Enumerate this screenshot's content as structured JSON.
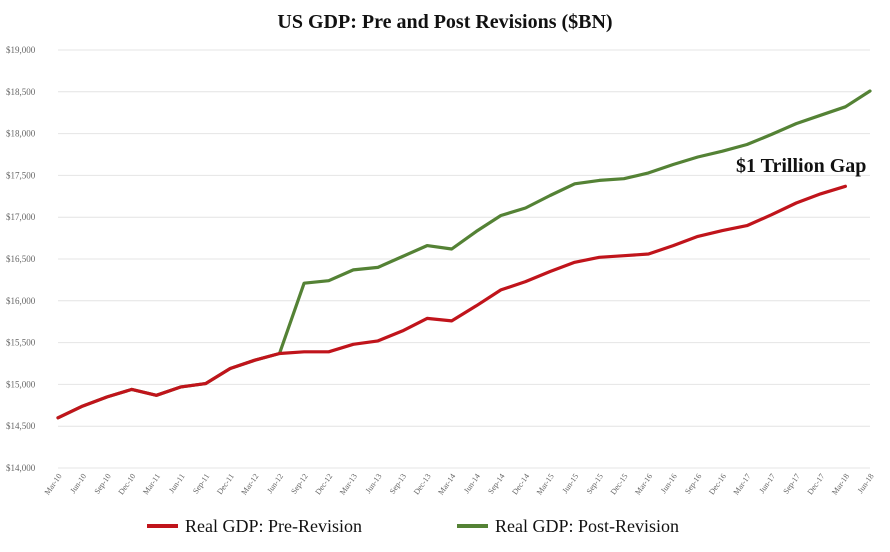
{
  "chart_data": {
    "type": "line",
    "title": "US GDP: Pre and Post Revisions ($BN)",
    "xlabel": "",
    "ylabel": "",
    "ylim": [
      14000,
      19000
    ],
    "y_ticks": [
      "$14,000",
      "$14,500",
      "$15,000",
      "$15,500",
      "$16,000",
      "$16,500",
      "$17,000",
      "$17,500",
      "$18,000",
      "$18,500",
      "$19,000"
    ],
    "x": [
      "Mar-10",
      "Jun-10",
      "Sep-10",
      "Dec-10",
      "Mar-11",
      "Jun-11",
      "Sep-11",
      "Dec-11",
      "Mar-12",
      "Jun-12",
      "Sep-12",
      "Dec-12",
      "Mar-13",
      "Jun-13",
      "Sep-13",
      "Dec-13",
      "Mar-14",
      "Jun-14",
      "Sep-14",
      "Dec-14",
      "Mar-15",
      "Jun-15",
      "Sep-15",
      "Dec-15",
      "Mar-16",
      "Jun-16",
      "Sep-16",
      "Dec-16",
      "Mar-17",
      "Jun-17",
      "Sep-17",
      "Dec-17",
      "Mar-18",
      "Jun-18"
    ],
    "grid": true,
    "legend": "bottom",
    "series": [
      {
        "name": "Real GDP: Pre-Revision",
        "color": "#c0141b",
        "values": [
          14600,
          14740,
          14850,
          14940,
          14870,
          14970,
          15010,
          15190,
          15290,
          15370,
          15390,
          15390,
          15480,
          15520,
          15640,
          15790,
          15760,
          15940,
          16130,
          16230,
          16350,
          16460,
          16520,
          16540,
          16560,
          16660,
          16770,
          16840,
          16900,
          17030,
          17170,
          17280,
          17370,
          null
        ]
      },
      {
        "name": "Real GDP: Post-Revision",
        "color": "#548235",
        "values": [
          14600,
          14740,
          14850,
          14940,
          14870,
          14970,
          15010,
          15190,
          15290,
          15370,
          16210,
          16240,
          16370,
          16400,
          16530,
          16660,
          16620,
          16830,
          17020,
          17110,
          17260,
          17400,
          17440,
          17460,
          17530,
          17630,
          17720,
          17790,
          17870,
          17990,
          18120,
          18220,
          18320,
          18510
        ]
      }
    ],
    "annotations": [
      {
        "text": "$1 Trillion Gap"
      }
    ]
  }
}
